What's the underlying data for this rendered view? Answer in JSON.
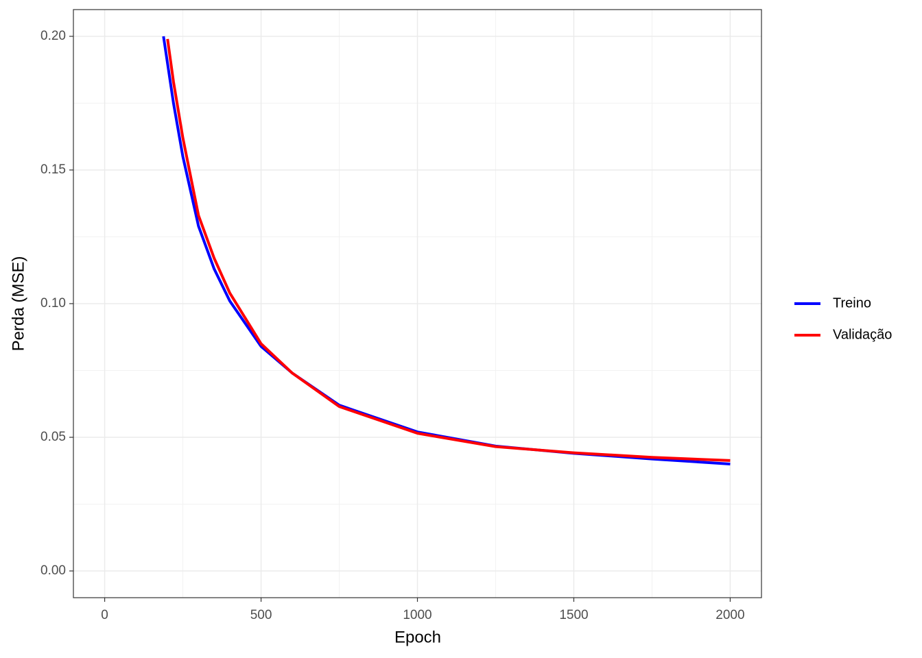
{
  "chart_data": {
    "type": "line",
    "x_label": "Epoch",
    "y_label": "Perda (MSE)",
    "xlim": [
      -100,
      2100
    ],
    "xticks": [
      0,
      500,
      1000,
      1500,
      2000
    ],
    "ylim": [
      -0.01,
      0.21
    ],
    "yticks": [
      {
        "value": 0,
        "label": "0.00"
      },
      0.05,
      {
        "value": 0.1,
        "label": "0.10"
      },
      0.15,
      {
        "value": 0.2,
        "label": "0.20"
      }
    ],
    "grid": true,
    "legend": "right",
    "series": [
      {
        "name": "Treino",
        "color": "#0000ff",
        "x": [
          188,
          220,
          250,
          300,
          350,
          400,
          500,
          600,
          750,
          1000,
          1250,
          1500,
          1750,
          2000
        ],
        "values": [
          0.2,
          0.175,
          0.155,
          0.129,
          0.113,
          0.101,
          0.084,
          0.074,
          0.062,
          0.052,
          0.0467,
          0.044,
          0.0419,
          0.04
        ]
      },
      {
        "name": "Validação",
        "color": "#ff0000",
        "x": [
          201,
          220,
          250,
          300,
          350,
          400,
          500,
          600,
          750,
          1000,
          1250,
          1500,
          1750,
          2000
        ],
        "values": [
          0.199,
          0.183,
          0.162,
          0.133,
          0.117,
          0.104,
          0.085,
          0.074,
          0.0615,
          0.0515,
          0.0465,
          0.0442,
          0.0425,
          0.0413
        ]
      }
    ]
  }
}
